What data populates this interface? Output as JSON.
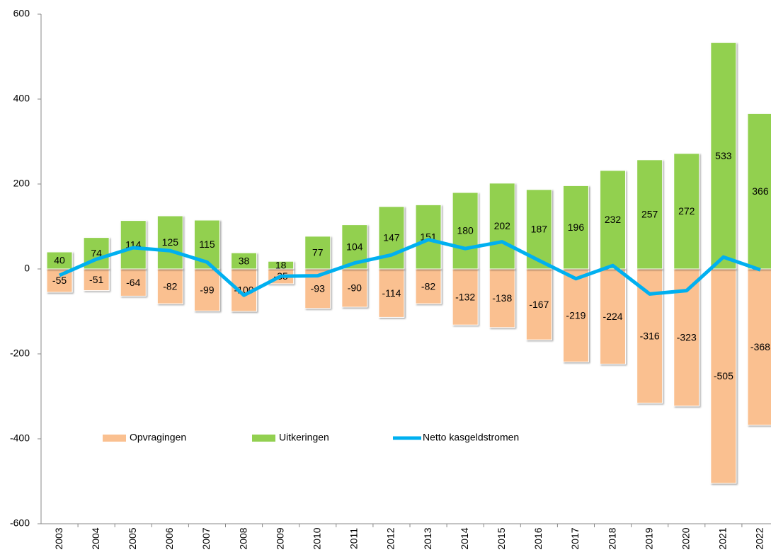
{
  "chart_data": {
    "type": "bar",
    "categories": [
      "2003",
      "2004",
      "2005",
      "2006",
      "2007",
      "2008",
      "2009",
      "2010",
      "2011",
      "2012",
      "2013",
      "2014",
      "2015",
      "2016",
      "2017",
      "2018",
      "2019",
      "2020",
      "2021",
      "2022"
    ],
    "series": [
      {
        "name": "Opvragingen",
        "color": "#FAC090",
        "values": [
          -55,
          -51,
          -64,
          -82,
          -99,
          -100,
          -35,
          -93,
          -90,
          -114,
          -82,
          -132,
          -138,
          -167,
          -219,
          -224,
          -316,
          -323,
          -505,
          -368
        ]
      },
      {
        "name": "Uitkeringen",
        "color": "#92D050",
        "values": [
          40,
          74,
          114,
          125,
          115,
          38,
          18,
          77,
          104,
          147,
          151,
          180,
          202,
          187,
          196,
          232,
          257,
          272,
          533,
          366
        ]
      },
      {
        "name": "Netto kasgeldstromen",
        "type": "line",
        "color": "#00B0F0",
        "values": [
          -15,
          23,
          50,
          43,
          16,
          -62,
          -17,
          -16,
          14,
          33,
          69,
          48,
          64,
          20,
          -23,
          8,
          -59,
          -51,
          28,
          -2
        ]
      }
    ],
    "ylim": [
      -600,
      600
    ],
    "yticks": [
      -600,
      -400,
      -200,
      0,
      200,
      400,
      600
    ],
    "grid": false,
    "legend": "bottom-left"
  }
}
